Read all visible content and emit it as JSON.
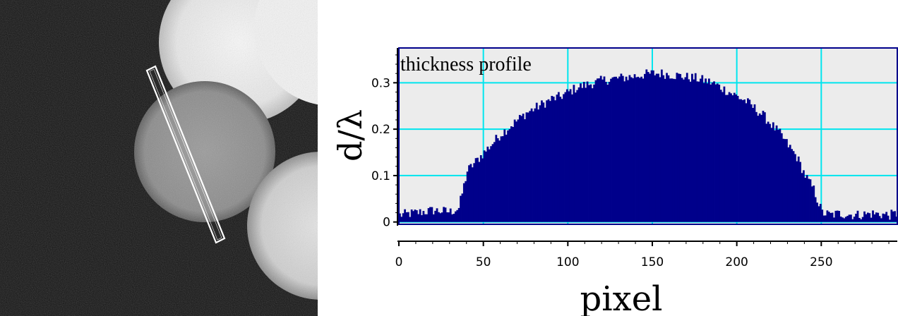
{
  "figure": {
    "image_panel": {
      "roi_shape": "rotated-rectangle"
    },
    "colors": {
      "bar_fill": "#00008b",
      "plot_bg": "#ececec",
      "grid": "#00e5ee",
      "frame": "#00008b",
      "axis": "#000000"
    }
  },
  "chart_data": {
    "type": "bar",
    "title": "thickness profile",
    "xlabel": "pixel",
    "ylabel": "d/λ",
    "xlim": [
      0,
      295
    ],
    "ylim": [
      -0.005,
      0.375
    ],
    "x_ticks": [
      0,
      50,
      100,
      150,
      200,
      250
    ],
    "x_tick_labels": [
      "0",
      "50",
      "100",
      "150",
      "200",
      "250"
    ],
    "y_ticks": [
      0,
      0.1,
      0.2,
      0.3
    ],
    "y_tick_labels": [
      "0",
      "0.1",
      "0.2",
      "0.3"
    ],
    "grid": true,
    "legend": "none",
    "series_profile": {
      "name": "",
      "x": [
        0,
        10,
        20,
        30,
        35,
        40,
        45,
        50,
        55,
        60,
        65,
        70,
        75,
        80,
        85,
        90,
        95,
        100,
        105,
        110,
        115,
        120,
        125,
        130,
        135,
        140,
        145,
        150,
        155,
        160,
        165,
        170,
        175,
        180,
        185,
        190,
        195,
        200,
        205,
        210,
        215,
        220,
        225,
        230,
        235,
        240,
        245,
        250,
        255,
        260,
        270,
        280,
        290,
        295
      ],
      "y": [
        0.015,
        0.02,
        0.025,
        0.022,
        0.03,
        0.11,
        0.13,
        0.15,
        0.17,
        0.19,
        0.205,
        0.22,
        0.235,
        0.245,
        0.255,
        0.265,
        0.27,
        0.28,
        0.29,
        0.295,
        0.3,
        0.305,
        0.308,
        0.31,
        0.312,
        0.315,
        0.318,
        0.32,
        0.32,
        0.318,
        0.315,
        0.312,
        0.31,
        0.305,
        0.3,
        0.29,
        0.28,
        0.27,
        0.26,
        0.245,
        0.23,
        0.21,
        0.19,
        0.165,
        0.14,
        0.1,
        0.07,
        0.02,
        0.015,
        0.018,
        0.015,
        0.018,
        0.015,
        0.018
      ]
    }
  }
}
